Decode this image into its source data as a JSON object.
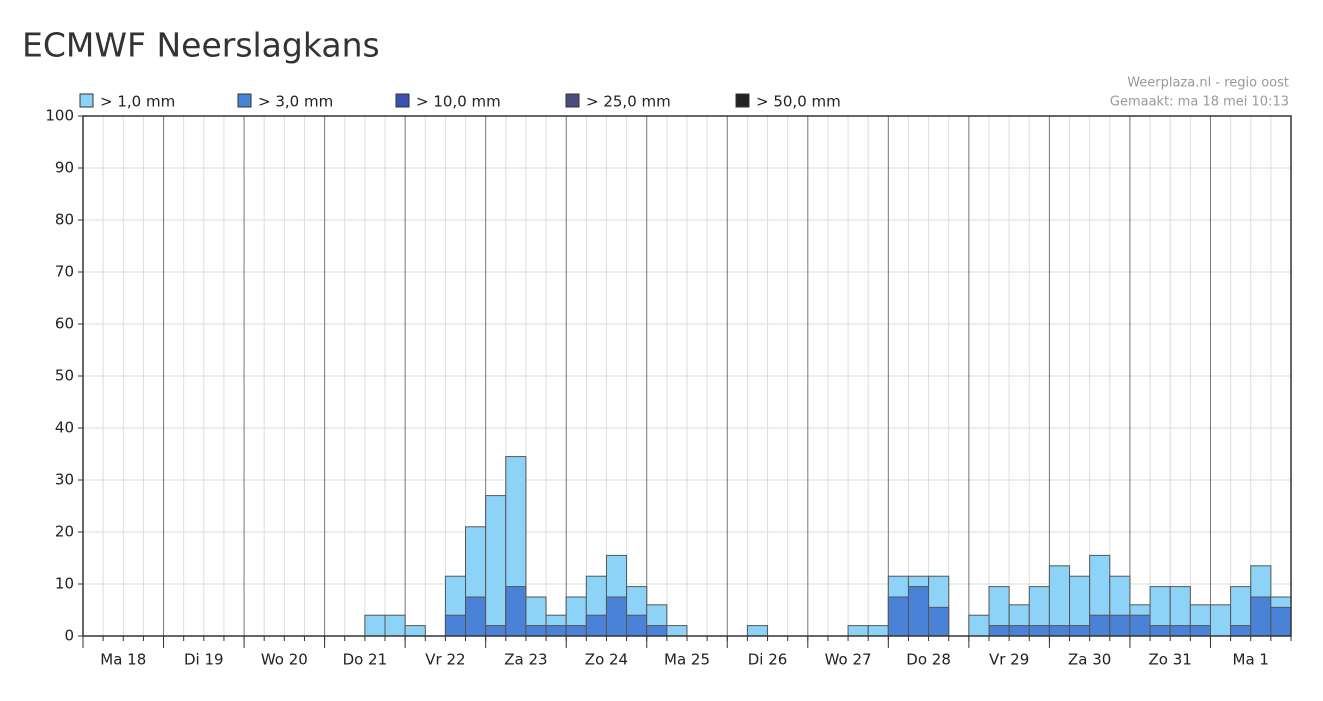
{
  "chart_data": {
    "type": "overlap-bar",
    "title": "ECMWF Neerslagkans",
    "source": "Weerplaza.nl - regio oost",
    "created": "Gemaakt: ma 18 mei 10:13",
    "day_labels": [
      "Ma 18",
      "Di 19",
      "Wo 20",
      "Do 21",
      "Vr 22",
      "Za 23",
      "Zo 24",
      "Ma 25",
      "Di 26",
      "Wo 27",
      "Do 28",
      "Vr 29",
      "Za 30",
      "Zo 31",
      "Ma 1"
    ],
    "ylim": [
      0,
      100
    ],
    "yticks": [
      0,
      10,
      20,
      30,
      40,
      50,
      60,
      70,
      80,
      90,
      100
    ],
    "grid": true,
    "series": [
      {
        "name": "> 1,0 mm",
        "color": "#8dd3f7",
        "values": [
          0,
          0,
          0,
          0,
          0,
          0,
          0,
          0,
          0,
          0,
          0,
          0,
          0,
          0,
          4,
          4,
          2,
          0,
          11.5,
          21,
          27,
          34.5,
          7.5,
          4,
          7.5,
          11.5,
          15.5,
          9.5,
          6,
          2,
          0,
          0,
          0,
          2,
          0,
          0,
          0,
          0,
          2,
          2,
          11.5,
          11.5,
          11.5,
          0,
          4,
          9.5,
          6,
          9.5,
          13.5,
          11.5,
          15.5,
          11.5,
          6,
          9.5,
          9.5,
          6,
          6,
          9.5,
          13.5,
          7.5
        ]
      },
      {
        "name": "> 3,0 mm",
        "color": "#4a82d8",
        "values": [
          0,
          0,
          0,
          0,
          0,
          0,
          0,
          0,
          0,
          0,
          0,
          0,
          0,
          0,
          0,
          0,
          0,
          0,
          4,
          7.5,
          2,
          9.5,
          2,
          2,
          2,
          4,
          7.5,
          4,
          2,
          0,
          0,
          0,
          0,
          0,
          0,
          0,
          0,
          0,
          0,
          0,
          7.5,
          9.5,
          5.5,
          0,
          0,
          2,
          2,
          2,
          2,
          2,
          4,
          4,
          4,
          2,
          2,
          2,
          0,
          2,
          7.5,
          5.5
        ]
      },
      {
        "name": "> 10,0 mm",
        "color": "#3c50b4",
        "values": [
          0,
          0,
          0,
          0,
          0,
          0,
          0,
          0,
          0,
          0,
          0,
          0,
          0,
          0,
          0,
          0,
          0,
          0,
          0,
          0,
          0,
          0,
          0,
          0,
          0,
          0,
          0,
          0,
          0,
          0,
          0,
          0,
          0,
          0,
          0,
          0,
          0,
          0,
          0,
          0,
          0,
          0,
          0,
          0,
          0,
          0,
          0,
          0,
          0,
          0,
          0,
          0,
          0,
          0,
          0,
          0,
          0,
          0,
          0,
          0
        ]
      },
      {
        "name": "> 25,0 mm",
        "color": "#4b4b82",
        "values": [
          0,
          0,
          0,
          0,
          0,
          0,
          0,
          0,
          0,
          0,
          0,
          0,
          0,
          0,
          0,
          0,
          0,
          0,
          0,
          0,
          0,
          0,
          0,
          0,
          0,
          0,
          0,
          0,
          0,
          0,
          0,
          0,
          0,
          0,
          0,
          0,
          0,
          0,
          0,
          0,
          0,
          0,
          0,
          0,
          0,
          0,
          0,
          0,
          0,
          0,
          0,
          0,
          0,
          0,
          0,
          0,
          0,
          0,
          0,
          0
        ]
      },
      {
        "name": "> 50,0 mm",
        "color": "#222222",
        "values": [
          0,
          0,
          0,
          0,
          0,
          0,
          0,
          0,
          0,
          0,
          0,
          0,
          0,
          0,
          0,
          0,
          0,
          0,
          0,
          0,
          0,
          0,
          0,
          0,
          0,
          0,
          0,
          0,
          0,
          0,
          0,
          0,
          0,
          0,
          0,
          0,
          0,
          0,
          0,
          0,
          0,
          0,
          0,
          0,
          0,
          0,
          0,
          0,
          0,
          0,
          0,
          0,
          0,
          0,
          0,
          0,
          0,
          0,
          0,
          0
        ]
      }
    ]
  }
}
